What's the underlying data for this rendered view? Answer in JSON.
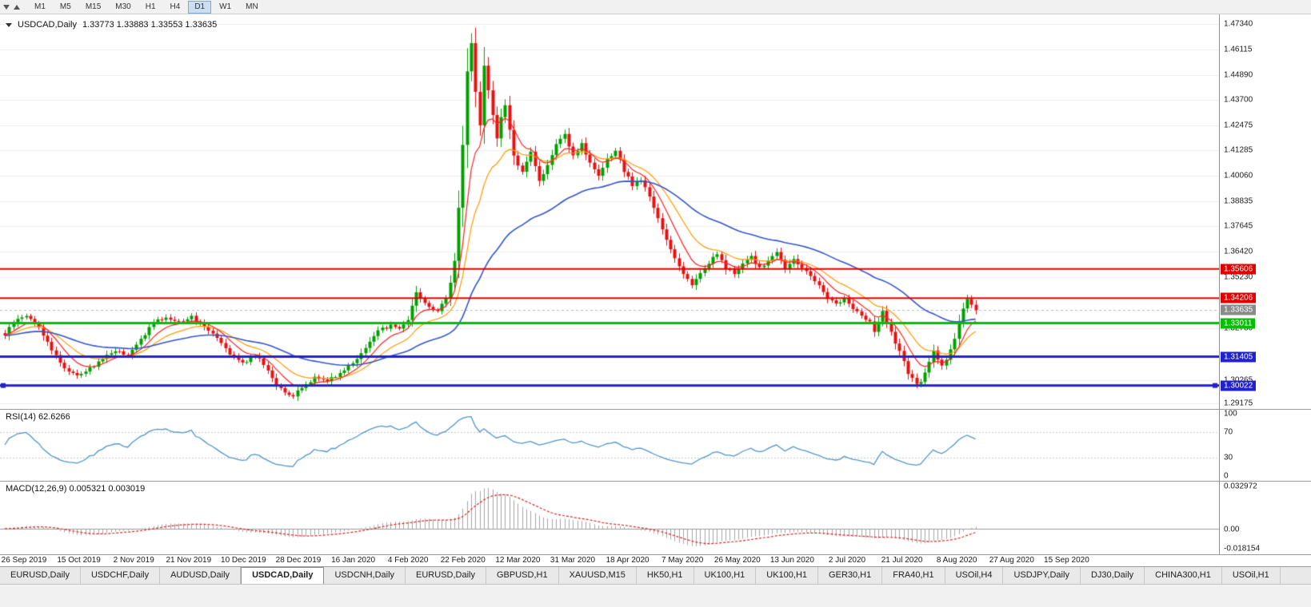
{
  "toolbar": {
    "timeframes": [
      "M1",
      "M5",
      "M15",
      "M30",
      "H1",
      "H4",
      "D1",
      "W1",
      "MN"
    ],
    "selected": "D1"
  },
  "chart_data": {
    "type": "candlestick",
    "title": "USDCAD,Daily",
    "ohlc_text": "1.33773 1.33883 1.33553 1.33635",
    "colors": {
      "up": "#00A000",
      "down": "#E81010",
      "grid": "#ECECEC"
    },
    "y_axis": {
      "price_max": 1.478,
      "price_min": 1.289,
      "labels": [
        "1.47340",
        "1.46115",
        "1.44890",
        "1.43700",
        "1.42475",
        "1.41285",
        "1.40060",
        "1.38835",
        "1.37645",
        "1.36420",
        "1.35230",
        "1.32780",
        "1.30265",
        "1.29175"
      ]
    },
    "x_axis": {
      "labels": [
        "26 Sep 2019",
        "15 Oct 2019",
        "2 Nov 2019",
        "21 Nov 2019",
        "10 Dec 2019",
        "28 Dec 2019",
        "16 Jan 2020",
        "4 Feb 2020",
        "22 Feb 2020",
        "12 Mar 2020",
        "31 Mar 2020",
        "18 Apr 2020",
        "7 May 2020",
        "26 May 2020",
        "13 Jun 2020",
        "2 Jul 2020",
        "21 Jul 2020",
        "8 Aug 2020",
        "27 Aug 2020",
        "15 Sep 2020"
      ]
    },
    "candles": {
      "count": 230,
      "anchors": [
        [
          0,
          1.3245
        ],
        [
          2,
          1.3305
        ],
        [
          5,
          1.334
        ],
        [
          8,
          1.328
        ],
        [
          11,
          1.3175
        ],
        [
          14,
          1.3085
        ],
        [
          17,
          1.3052
        ],
        [
          20,
          1.3082
        ],
        [
          23,
          1.3132
        ],
        [
          26,
          1.3172
        ],
        [
          29,
          1.314
        ],
        [
          32,
          1.3225
        ],
        [
          35,
          1.3302
        ],
        [
          38,
          1.333
        ],
        [
          41,
          1.3308
        ],
        [
          44,
          1.333
        ],
        [
          47,
          1.3288
        ],
        [
          50,
          1.3238
        ],
        [
          53,
          1.3158
        ],
        [
          56,
          1.3108
        ],
        [
          59,
          1.3148
        ],
        [
          62,
          1.3078
        ],
        [
          64,
          1.3008
        ],
        [
          66,
          1.2962
        ],
        [
          68,
          1.2952
        ],
        [
          70,
          1.2992
        ],
        [
          73,
          1.3042
        ],
        [
          76,
          1.3028
        ],
        [
          79,
          1.3062
        ],
        [
          82,
          1.3112
        ],
        [
          85,
          1.3182
        ],
        [
          88,
          1.3262
        ],
        [
          91,
          1.3292
        ],
        [
          93,
          1.3272
        ],
        [
          95,
          1.3322
        ],
        [
          96,
          1.3392
        ],
        [
          97,
          1.3442
        ],
        [
          98,
          1.342
        ],
        [
          100,
          1.3378
        ],
        [
          102,
          1.336
        ],
        [
          104,
          1.3422
        ],
        [
          105,
          1.3502
        ],
        [
          106,
          1.3602
        ],
        [
          107,
          1.3852
        ],
        [
          108,
          1.4152
        ],
        [
          109,
          1.4502
        ],
        [
          110,
          1.464
        ],
        [
          111,
          1.4402
        ],
        [
          112,
          1.4252
        ],
        [
          113,
          1.4532
        ],
        [
          114,
          1.4422
        ],
        [
          115,
          1.4302
        ],
        [
          116,
          1.4182
        ],
        [
          117,
          1.4282
        ],
        [
          118,
          1.4349
        ],
        [
          119,
          1.4222
        ],
        [
          120,
          1.4102
        ],
        [
          122,
          1.4022
        ],
        [
          124,
          1.4122
        ],
        [
          126,
          1.3982
        ],
        [
          128,
          1.4062
        ],
        [
          130,
          1.4152
        ],
        [
          132,
          1.4202
        ],
        [
          134,
          1.4102
        ],
        [
          136,
          1.4162
        ],
        [
          138,
          1.4062
        ],
        [
          140,
          1.4002
        ],
        [
          142,
          1.4082
        ],
        [
          144,
          1.4122
        ],
        [
          146,
          1.4032
        ],
        [
          148,
          1.3962
        ],
        [
          150,
          1.3992
        ],
        [
          152,
          1.3902
        ],
        [
          154,
          1.3802
        ],
        [
          156,
          1.3702
        ],
        [
          158,
          1.3612
        ],
        [
          160,
          1.3542
        ],
        [
          162,
          1.3482
        ],
        [
          164,
          1.3542
        ],
        [
          166,
          1.3592
        ],
        [
          168,
          1.3632
        ],
        [
          170,
          1.3562
        ],
        [
          172,
          1.3542
        ],
        [
          174,
          1.3582
        ],
        [
          176,
          1.3622
        ],
        [
          178,
          1.3562
        ],
        [
          180,
          1.3602
        ],
        [
          182,
          1.3642
        ],
        [
          184,
          1.3562
        ],
        [
          186,
          1.3602
        ],
        [
          188,
          1.3572
        ],
        [
          190,
          1.3522
        ],
        [
          192,
          1.3482
        ],
        [
          194,
          1.3422
        ],
        [
          196,
          1.3392
        ],
        [
          198,
          1.3422
        ],
        [
          200,
          1.3372
        ],
        [
          202,
          1.3342
        ],
        [
          204,
          1.3302
        ],
        [
          205,
          1.3262
        ],
        [
          206,
          1.3312
        ],
        [
          207,
          1.3352
        ],
        [
          208,
          1.3302
        ],
        [
          209,
          1.3252
        ],
        [
          210,
          1.3202
        ],
        [
          211,
          1.3162
        ],
        [
          212,
          1.3112
        ],
        [
          213,
          1.3062
        ],
        [
          214,
          1.3032
        ],
        [
          215,
          1.3002
        ],
        [
          216,
          1.3022
        ],
        [
          217,
          1.3072
        ],
        [
          218,
          1.3122
        ],
        [
          219,
          1.3162
        ],
        [
          220,
          1.3132
        ],
        [
          221,
          1.3092
        ],
        [
          222,
          1.3132
        ],
        [
          223,
          1.3172
        ],
        [
          224,
          1.3232
        ],
        [
          225,
          1.3302
        ],
        [
          226,
          1.3372
        ],
        [
          227,
          1.342
        ],
        [
          228,
          1.3392
        ],
        [
          229,
          1.33635
        ]
      ]
    },
    "moving_averages": [
      {
        "period": 8,
        "color": "#FF2020"
      },
      {
        "period": 16,
        "color": "#FF9900"
      },
      {
        "period": 45,
        "color": "#3355CC"
      }
    ],
    "horizontal_lines": [
      {
        "price": 1.35606,
        "label": "1.35606",
        "color": "#E00000",
        "width": 2
      },
      {
        "price": 1.34206,
        "label": "1.34206",
        "color": "#E00000",
        "width": 2
      },
      {
        "price": 1.33011,
        "label": "1.33011",
        "color": "#00C000",
        "width": 3
      },
      {
        "price": 1.31405,
        "label": "1.31405",
        "color": "#2222CC",
        "width": 3
      },
      {
        "price": 1.30022,
        "label": "1.30022",
        "color": "#2222CC",
        "width": 3,
        "handles": true
      }
    ],
    "current_price": {
      "value": 1.33635,
      "label": "1.33635",
      "badge_color": "#8A8A8A"
    },
    "indicators": {
      "rsi": {
        "label": "RSI(14) 62.6266",
        "period": 14,
        "levels": [
          70,
          30
        ],
        "axis_labels": [
          "100",
          "70",
          "30",
          "0"
        ],
        "color": "#4F94CD"
      },
      "macd": {
        "label": "MACD(12,26,9) 0.005321 0.003019",
        "fast": 12,
        "slow": 26,
        "signal": 9,
        "axis_labels": [
          "0.032972",
          "0.00",
          "-0.018154"
        ],
        "histogram_color": "#A4A4A4",
        "signal_color": "#E02020"
      }
    }
  },
  "tabs": {
    "selected_index": 3,
    "items": [
      "EURUSD,Daily",
      "USDCHF,Daily",
      "AUDUSD,Daily",
      "USDCAD,Daily",
      "USDCNH,Daily",
      "EURUSD,Daily",
      "GBPUSD,H1",
      "XAUUSD,M15",
      "HK50,H1",
      "UK100,H1",
      "UK100,H1",
      "GER30,H1",
      "FRA40,H1",
      "USOil,H4",
      "USDJPY,Daily",
      "DJ30,Daily",
      "CHINA300,H1",
      "USOil,H1"
    ]
  }
}
